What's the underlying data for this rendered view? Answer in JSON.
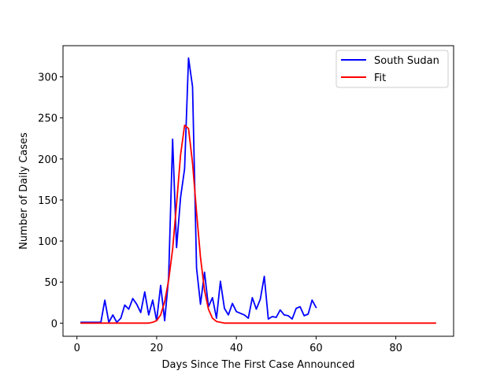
{
  "chart_data": {
    "type": "line",
    "title": "",
    "xlabel": "Days Since The First Case Announced",
    "ylabel": "Number of Daily Cases",
    "xlim": [
      -3.5,
      94.5
    ],
    "ylim": [
      -16,
      338
    ],
    "xticks": [
      0,
      20,
      40,
      60,
      80
    ],
    "yticks": [
      0,
      50,
      100,
      150,
      200,
      250,
      300
    ],
    "grid": false,
    "legend_position": "top-right",
    "series": [
      {
        "name": "South Sudan",
        "color": "#0000ff",
        "x": [
          1,
          2,
          3,
          4,
          5,
          6,
          7,
          8,
          9,
          10,
          11,
          12,
          13,
          14,
          15,
          16,
          17,
          18,
          19,
          20,
          21,
          22,
          23,
          24,
          25,
          26,
          27,
          28,
          29,
          30,
          31,
          32,
          33,
          34,
          35,
          36,
          37,
          38,
          39,
          40,
          41,
          42,
          43,
          44,
          45,
          46,
          47,
          48,
          49,
          50,
          51,
          52,
          53,
          54,
          55,
          56,
          57,
          58,
          59,
          60
        ],
        "y": [
          1,
          1,
          1,
          1,
          1,
          1,
          28,
          1,
          10,
          1,
          6,
          22,
          17,
          30,
          23,
          13,
          38,
          10,
          28,
          3,
          46,
          3,
          55,
          224,
          92,
          153,
          188,
          323,
          288,
          67,
          23,
          62,
          20,
          31,
          6,
          51,
          18,
          10,
          24,
          14,
          12,
          10,
          6,
          31,
          17,
          29,
          57,
          5,
          8,
          7,
          16,
          10,
          9,
          5,
          18,
          20,
          9,
          11,
          28,
          19
        ]
      },
      {
        "name": "Fit",
        "color": "#ff0000",
        "x": [
          1,
          2,
          3,
          4,
          5,
          6,
          7,
          8,
          9,
          10,
          11,
          12,
          13,
          14,
          15,
          16,
          17,
          18,
          19,
          20,
          21,
          22,
          23,
          24,
          25,
          26,
          27,
          28,
          29,
          30,
          31,
          32,
          33,
          34,
          35,
          36,
          37,
          38,
          39,
          40,
          41,
          42,
          43,
          44,
          45,
          46,
          47,
          48,
          49,
          50,
          51,
          52,
          53,
          54,
          55,
          56,
          57,
          58,
          59,
          60,
          61,
          62,
          63,
          64,
          65,
          66,
          67,
          68,
          69,
          70,
          71,
          72,
          73,
          74,
          75,
          76,
          77,
          78,
          79,
          80,
          81,
          82,
          83,
          84,
          85,
          86,
          87,
          88,
          89,
          90
        ],
        "y": [
          0,
          0,
          0,
          0,
          0,
          0,
          0,
          0,
          0,
          0,
          0,
          0,
          0,
          0,
          0,
          0,
          0,
          0,
          1,
          3,
          10,
          26,
          52,
          90,
          145,
          205,
          241,
          237,
          195,
          135,
          80,
          40,
          17,
          6,
          2,
          1,
          0,
          0,
          0,
          0,
          0,
          0,
          0,
          0,
          0,
          0,
          0,
          0,
          0,
          0,
          0,
          0,
          0,
          0,
          0,
          0,
          0,
          0,
          0,
          0,
          0,
          0,
          0,
          0,
          0,
          0,
          0,
          0,
          0,
          0,
          0,
          0,
          0,
          0,
          0,
          0,
          0,
          0,
          0,
          0,
          0,
          0,
          0,
          0,
          0,
          0,
          0,
          0,
          0,
          0
        ]
      }
    ]
  }
}
